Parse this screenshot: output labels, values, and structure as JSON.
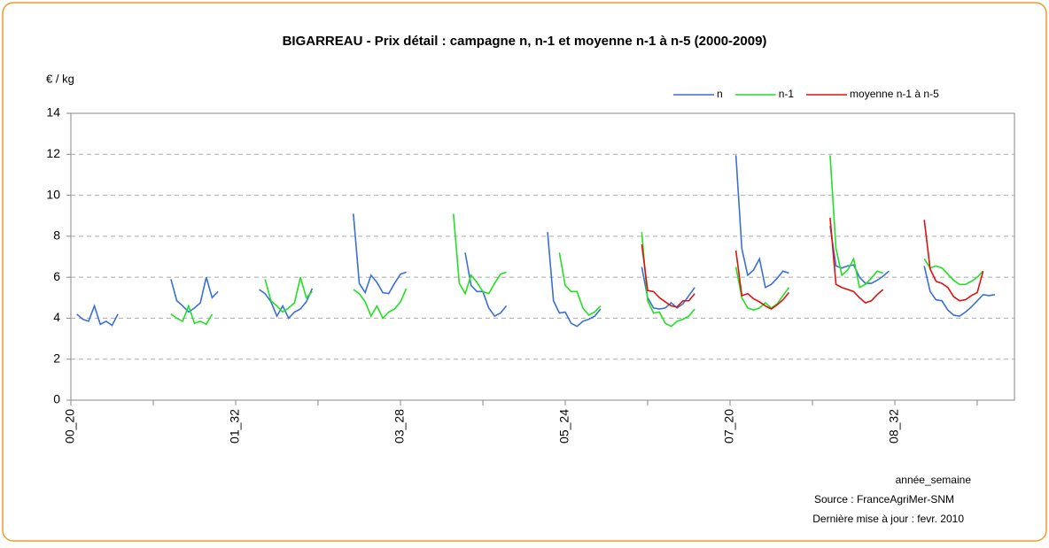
{
  "chart_data": {
    "type": "line",
    "title": "BIGARREAU - Prix détail : campagne n, n-1 et moyenne n-1 à n-5 (2000-2009)",
    "y_label": "€ / kg",
    "x_label": "année_semaine",
    "source": "Source : FranceAgriMer-SNM",
    "update": "Dernière mise à jour : fevr. 2010",
    "categories": [
      "00_20",
      null,
      null,
      null,
      null,
      null,
      null,
      null,
      null,
      null,
      null,
      null,
      null,
      null,
      null,
      null,
      null,
      null,
      null,
      null,
      null,
      null,
      null,
      null,
      null,
      null,
      null,
      null,
      "01_32",
      null,
      null,
      null,
      null,
      null,
      null,
      null,
      null,
      null,
      null,
      null,
      null,
      null,
      null,
      null,
      null,
      null,
      null,
      null,
      null,
      null,
      null,
      null,
      null,
      null,
      null,
      null,
      "03_28",
      null,
      null,
      null,
      null,
      null,
      null,
      null,
      null,
      null,
      null,
      null,
      null,
      null,
      null,
      null,
      null,
      null,
      null,
      null,
      null,
      null,
      null,
      null,
      null,
      null,
      null,
      null,
      "05_24",
      null,
      null,
      null,
      null,
      null,
      null,
      null,
      null,
      null,
      null,
      null,
      null,
      null,
      null,
      null,
      null,
      null,
      null,
      null,
      null,
      null,
      null,
      null,
      null,
      null,
      null,
      null,
      "07_20",
      null,
      null,
      null,
      null,
      null,
      null,
      null,
      null,
      null,
      null,
      null,
      null,
      null,
      null,
      null,
      null,
      null,
      null,
      null,
      null,
      null,
      null,
      null,
      null,
      null,
      null,
      null,
      "08_32",
      null,
      null,
      null,
      null,
      null,
      null,
      null,
      null,
      null,
      null,
      null,
      null,
      null,
      null,
      null,
      null,
      null,
      null,
      null,
      null
    ],
    "series": [
      {
        "name": "n",
        "color": "#3a6fd8",
        "values": [
          null,
          4.2,
          3.95,
          3.85,
          4.6,
          3.7,
          3.85,
          3.65,
          4.2,
          null,
          null,
          null,
          null,
          null,
          null,
          null,
          null,
          5.9,
          4.85,
          4.6,
          4.3,
          4.5,
          4.75,
          6.0,
          5.0,
          5.3,
          null,
          null,
          null,
          null,
          null,
          null,
          5.4,
          5.2,
          4.8,
          4.1,
          4.6,
          4.0,
          4.3,
          4.45,
          4.8,
          5.45,
          null,
          null,
          null,
          null,
          null,
          null,
          9.1,
          5.7,
          5.25,
          6.1,
          5.75,
          5.25,
          5.2,
          5.7,
          6.15,
          6.25,
          null,
          null,
          null,
          null,
          null,
          null,
          null,
          null,
          null,
          7.2,
          5.6,
          5.3,
          5.3,
          4.5,
          4.1,
          4.25,
          4.6,
          null,
          null,
          null,
          null,
          null,
          null,
          8.2,
          4.85,
          4.25,
          4.3,
          3.75,
          3.6,
          3.85,
          3.95,
          4.1,
          4.45,
          null,
          null,
          null,
          null,
          null,
          null,
          6.5,
          5.0,
          4.5,
          4.45,
          4.5,
          4.75,
          4.5,
          4.7,
          5.1,
          5.5,
          null,
          null,
          null,
          null,
          null,
          null,
          11.95,
          7.4,
          6.1,
          6.35,
          6.9,
          5.5,
          5.65,
          5.95,
          6.3,
          6.2,
          null,
          null,
          null,
          null,
          null,
          null,
          8.5,
          6.55,
          6.45,
          6.55,
          6.6,
          6.0,
          5.7,
          5.7,
          5.85,
          6.05,
          6.3,
          null,
          null,
          null,
          null,
          null,
          6.55,
          5.3,
          4.9,
          4.85,
          4.4,
          4.15,
          4.1,
          4.3,
          4.55,
          4.85,
          5.15,
          5.1,
          5.15,
          null,
          null,
          null
        ]
      },
      {
        "name": "n-1",
        "color": "#22e022",
        "values": [
          null,
          null,
          null,
          null,
          null,
          null,
          null,
          null,
          null,
          null,
          null,
          null,
          null,
          null,
          null,
          null,
          null,
          4.2,
          4.0,
          3.85,
          4.6,
          3.75,
          3.85,
          3.7,
          4.2,
          null,
          null,
          null,
          null,
          null,
          null,
          null,
          null,
          5.9,
          4.85,
          4.6,
          4.3,
          4.5,
          4.75,
          6.0,
          5.0,
          5.3,
          null,
          null,
          null,
          null,
          null,
          null,
          5.4,
          5.2,
          4.8,
          4.1,
          4.6,
          4.0,
          4.3,
          4.45,
          4.8,
          5.45,
          null,
          null,
          null,
          null,
          null,
          null,
          null,
          9.1,
          5.7,
          5.2,
          6.1,
          5.75,
          5.3,
          5.2,
          5.7,
          6.15,
          6.25,
          null,
          null,
          null,
          null,
          null,
          null,
          null,
          null,
          7.2,
          5.6,
          5.3,
          5.3,
          4.5,
          4.15,
          4.3,
          4.6,
          null,
          null,
          null,
          null,
          null,
          null,
          8.2,
          4.85,
          4.25,
          4.3,
          3.75,
          3.6,
          3.85,
          3.95,
          4.1,
          4.45,
          null,
          null,
          null,
          null,
          null,
          null,
          6.5,
          5.0,
          4.5,
          4.4,
          4.5,
          4.75,
          4.5,
          4.7,
          5.1,
          5.5,
          null,
          null,
          null,
          null,
          null,
          null,
          11.95,
          7.4,
          6.1,
          6.35,
          6.9,
          5.5,
          5.65,
          5.95,
          6.3,
          6.2,
          null,
          null,
          null,
          null,
          null,
          null,
          6.9,
          6.45,
          6.55,
          6.45,
          6.15,
          5.85,
          5.65,
          5.65,
          5.8,
          6.0,
          6.3,
          null,
          null,
          null,
          null,
          null
        ]
      },
      {
        "name": "moyenne n-1 à n-5",
        "color": "#dd1111",
        "values": [
          null,
          null,
          null,
          null,
          null,
          null,
          null,
          null,
          null,
          null,
          null,
          null,
          null,
          null,
          null,
          null,
          null,
          null,
          null,
          null,
          null,
          null,
          null,
          null,
          null,
          null,
          null,
          null,
          null,
          null,
          null,
          null,
          null,
          null,
          null,
          null,
          null,
          null,
          null,
          null,
          null,
          null,
          null,
          null,
          null,
          null,
          null,
          null,
          null,
          null,
          null,
          null,
          null,
          null,
          null,
          null,
          null,
          null,
          null,
          null,
          null,
          null,
          null,
          null,
          null,
          null,
          null,
          null,
          null,
          null,
          null,
          null,
          null,
          null,
          null,
          null,
          null,
          null,
          null,
          null,
          null,
          null,
          null,
          null,
          null,
          null,
          null,
          null,
          null,
          null,
          null,
          null,
          null,
          null,
          null,
          null,
          null,
          7.6,
          5.35,
          5.3,
          5.0,
          4.8,
          4.6,
          4.55,
          4.85,
          4.85,
          5.2,
          null,
          null,
          null,
          null,
          null,
          null,
          7.3,
          5.1,
          5.2,
          4.95,
          4.8,
          4.6,
          4.45,
          4.65,
          4.9,
          5.25,
          null,
          null,
          null,
          null,
          null,
          null,
          8.9,
          5.65,
          5.5,
          5.4,
          5.3,
          5.0,
          4.75,
          4.85,
          5.15,
          5.4,
          null,
          null,
          null,
          null,
          null,
          null,
          8.8,
          6.4,
          5.8,
          5.7,
          5.5,
          5.05,
          4.85,
          4.9,
          5.1,
          5.25,
          6.3,
          null,
          null,
          null,
          null,
          null
        ]
      }
    ],
    "ylim": [
      0,
      14
    ],
    "yticks": [
      0,
      2,
      4,
      6,
      8,
      10,
      12,
      14
    ],
    "grid": true,
    "legend": "top-right"
  }
}
